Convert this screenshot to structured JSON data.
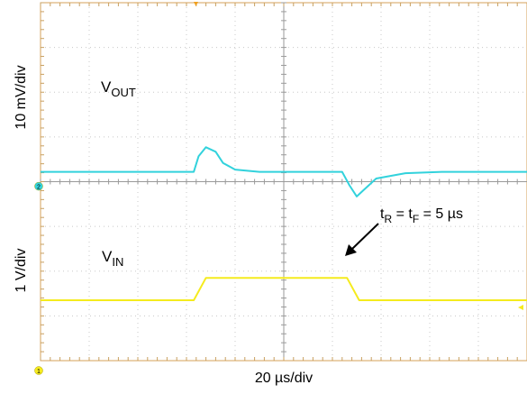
{
  "chart_data": {
    "type": "line",
    "x_unit_label": "20 µs/div",
    "x_divisions": 10,
    "y_divisions": 8,
    "x_range_us": [
      0,
      200
    ],
    "grid": true,
    "series": [
      {
        "name": "V_OUT",
        "label_main": "V",
        "label_sub": "OUT",
        "color": "#32d2dc",
        "channel_marker": "2",
        "scale_label": "10 mV/div",
        "baseline_div": 4.22,
        "points": [
          [
            0,
            0
          ],
          [
            63,
            0
          ],
          [
            65,
            0.35
          ],
          [
            68,
            0.55
          ],
          [
            72,
            0.45
          ],
          [
            75,
            0.2
          ],
          [
            80,
            0.05
          ],
          [
            90,
            0
          ],
          [
            124,
            0
          ],
          [
            127,
            -0.3
          ],
          [
            130,
            -0.55
          ],
          [
            133,
            -0.4
          ],
          [
            138,
            -0.15
          ],
          [
            150,
            -0.03
          ],
          [
            165,
            0
          ],
          [
            200,
            0
          ]
        ]
      },
      {
        "name": "V_IN",
        "label_main": "V",
        "label_sub": "IN",
        "color": "#f5eb1e",
        "channel_marker": "1",
        "scale_label": "1 V/div",
        "baseline_div": 1.35,
        "points": [
          [
            0,
            0
          ],
          [
            63,
            0
          ],
          [
            68,
            0.5
          ],
          [
            70,
            0.5
          ],
          [
            124,
            0.5
          ],
          [
            126,
            0.5
          ],
          [
            131,
            0
          ],
          [
            200,
            0
          ]
        ]
      }
    ],
    "annotations": [
      {
        "parts": [
          "t",
          "R",
          " = t",
          "F",
          " = 5 µs"
        ]
      }
    ]
  }
}
